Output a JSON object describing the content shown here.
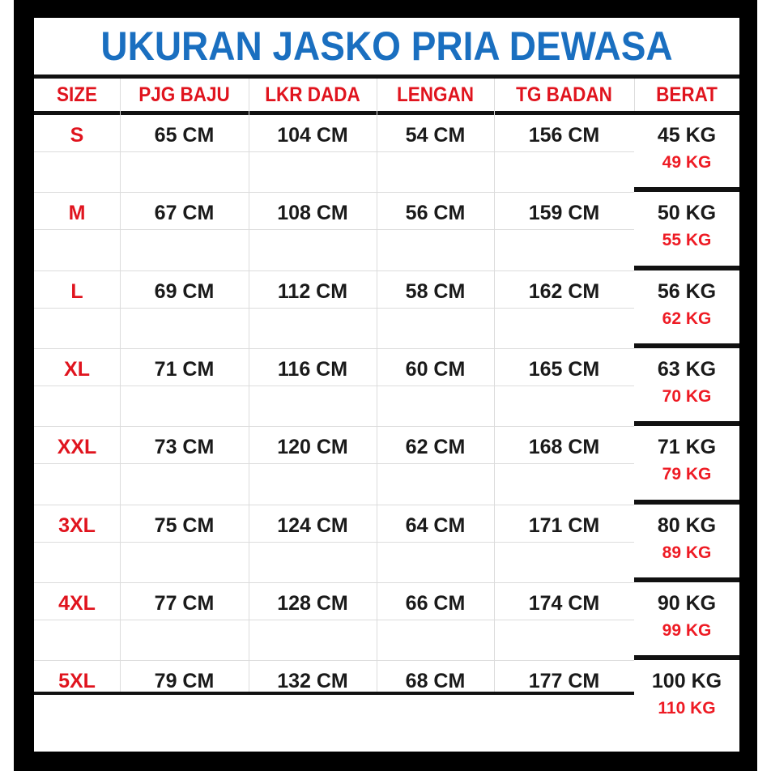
{
  "title": "UKURAN JASKO PRIA DEWASA",
  "headers": [
    "SIZE",
    "PJG BAJU",
    "LKR DADA",
    "LENGAN",
    "TG BADAN",
    "BERAT"
  ],
  "colors": {
    "title": "#1a6fc0",
    "header": "#e0141e",
    "size": "#e0141e",
    "weight_max": "#ee1b24"
  },
  "rows": [
    {
      "size": "S",
      "pjg": "65 CM",
      "lkr": "104 CM",
      "lengan": "54 CM",
      "tg": "156 CM",
      "berat_min": "45 KG",
      "berat_max": "49 KG"
    },
    {
      "size": "M",
      "pjg": "67 CM",
      "lkr": "108 CM",
      "lengan": "56 CM",
      "tg": "159 CM",
      "berat_min": "50 KG",
      "berat_max": "55 KG"
    },
    {
      "size": "L",
      "pjg": "69 CM",
      "lkr": "112 CM",
      "lengan": "58 CM",
      "tg": "162 CM",
      "berat_min": "56 KG",
      "berat_max": "62 KG"
    },
    {
      "size": "XL",
      "pjg": "71 CM",
      "lkr": "116 CM",
      "lengan": "60 CM",
      "tg": "165 CM",
      "berat_min": "63 KG",
      "berat_max": "70 KG"
    },
    {
      "size": "XXL",
      "pjg": "73 CM",
      "lkr": "120 CM",
      "lengan": "62 CM",
      "tg": "168 CM",
      "berat_min": "71 KG",
      "berat_max": "79 KG"
    },
    {
      "size": "3XL",
      "pjg": "75 CM",
      "lkr": "124 CM",
      "lengan": "64 CM",
      "tg": "171 CM",
      "berat_min": "80 KG",
      "berat_max": "89 KG"
    },
    {
      "size": "4XL",
      "pjg": "77 CM",
      "lkr": "128 CM",
      "lengan": "66 CM",
      "tg": "174 CM",
      "berat_min": "90 KG",
      "berat_max": "99 KG"
    },
    {
      "size": "5XL",
      "pjg": "79 CM",
      "lkr": "132 CM",
      "lengan": "68 CM",
      "tg": "177 CM",
      "berat_min": "100 KG",
      "berat_max": "110 KG"
    }
  ]
}
